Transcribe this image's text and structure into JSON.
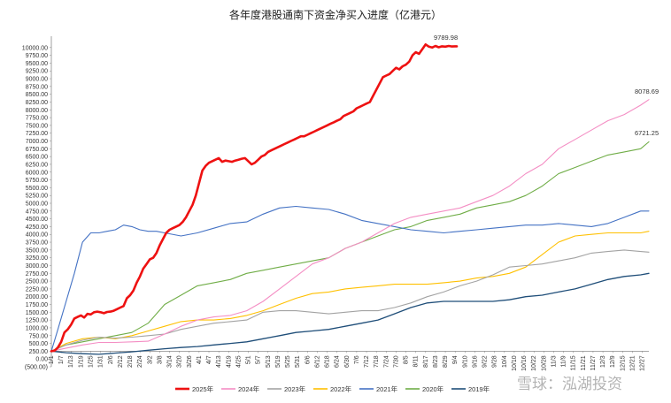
{
  "chart_data": {
    "type": "line",
    "title": "各年度港股通南下资金净买入进度（亿港元）",
    "xlabel": "",
    "ylabel": "",
    "ylim": [
      -500,
      10000
    ],
    "y_ticks": [
      "(500.00)",
      "0.00",
      "250.00",
      "500.00",
      "750.00",
      "1000.00",
      "1250.00",
      "1500.00",
      "1750.00",
      "2000.00",
      "2250.00",
      "2500.00",
      "2750.00",
      "3000.00",
      "3250.00",
      "3500.00",
      "3750.00",
      "4000.00",
      "4250.00",
      "4500.00",
      "4750.00",
      "5000.00",
      "5250.00",
      "5500.00",
      "5750.00",
      "6000.00",
      "6250.00",
      "6500.00",
      "6750.00",
      "7000.00",
      "7250.00",
      "7500.00",
      "7750.00",
      "8000.00",
      "8250.00",
      "8500.00",
      "8750.00",
      "9000.00",
      "9250.00",
      "9500.00",
      "9750.00",
      "10000.00"
    ],
    "x_ticks": [
      "1/1",
      "1/7",
      "1/13",
      "1/19",
      "1/25",
      "1/31",
      "2/6",
      "2/12",
      "2/18",
      "2/24",
      "3/2",
      "3/8",
      "3/14",
      "3/20",
      "3/26",
      "4/1",
      "4/7",
      "4/13",
      "4/19",
      "4/25",
      "5/1",
      "5/7",
      "5/13",
      "5/19",
      "5/25",
      "5/31",
      "6/6",
      "6/12",
      "6/18",
      "6/24",
      "6/30",
      "7/6",
      "7/12",
      "7/18",
      "7/24",
      "7/30",
      "8/5",
      "8/11",
      "8/17",
      "8/23",
      "8/29",
      "9/4",
      "9/10",
      "9/16",
      "9/22",
      "9/28",
      "10/4",
      "10/10",
      "10/16",
      "10/22",
      "10/28",
      "11/3",
      "11/9",
      "11/15",
      "11/21",
      "11/27",
      "12/3",
      "12/9",
      "12/15",
      "12/21",
      "12/27"
    ],
    "x_unit": "day-of-year",
    "legend_position": "bottom",
    "grid": false,
    "series": [
      {
        "name": "2025年",
        "color": "#ee1111",
        "width": 2.6,
        "x": [
          1,
          3,
          5,
          7,
          9,
          11,
          13,
          15,
          17,
          19,
          21,
          23,
          25,
          27,
          29,
          31,
          33,
          35,
          37,
          39,
          41,
          43,
          45,
          47,
          49,
          51,
          53,
          55,
          57,
          59,
          61,
          63,
          65,
          67,
          69,
          71,
          73,
          75,
          77,
          79,
          81,
          83,
          85,
          87,
          89,
          91,
          93,
          95,
          97,
          99,
          101,
          103,
          105,
          107,
          109,
          111,
          113,
          115,
          117,
          119,
          121,
          123,
          125,
          127,
          129,
          131,
          133,
          135,
          137,
          139,
          141,
          143,
          145,
          147,
          149,
          151,
          153,
          155,
          157,
          159,
          161,
          163,
          165,
          167,
          169,
          171,
          173,
          175,
          177,
          179,
          181,
          183,
          185,
          187,
          189,
          191,
          193,
          195,
          197,
          199,
          201,
          203,
          205,
          207,
          209,
          211,
          213,
          215,
          217,
          219,
          221,
          223,
          225,
          227,
          229,
          231,
          233,
          235,
          237,
          239,
          241,
          243,
          245,
          247,
          248
        ],
        "values": [
          0,
          20,
          120,
          300,
          600,
          700,
          850,
          1050,
          1100,
          1150,
          1080,
          1200,
          1180,
          1250,
          1270,
          1250,
          1220,
          1260,
          1270,
          1300,
          1350,
          1400,
          1450,
          1700,
          1800,
          1950,
          2200,
          2400,
          2650,
          2800,
          2950,
          3000,
          3150,
          3400,
          3600,
          3800,
          3900,
          3950,
          4000,
          4050,
          4150,
          4300,
          4500,
          4700,
          5000,
          5400,
          5800,
          5950,
          6050,
          6100,
          6150,
          6200,
          6080,
          6120,
          6100,
          6080,
          6120,
          6150,
          6180,
          6200,
          6100,
          6000,
          6050,
          6150,
          6250,
          6300,
          6400,
          6450,
          6500,
          6550,
          6600,
          6650,
          6700,
          6750,
          6800,
          6850,
          6900,
          6900,
          6950,
          7000,
          7050,
          7100,
          7150,
          7200,
          7250,
          7300,
          7350,
          7400,
          7450,
          7550,
          7600,
          7650,
          7700,
          7800,
          7850,
          7900,
          7950,
          8000,
          8200,
          8400,
          8600,
          8800,
          8850,
          8900,
          9000,
          9100,
          9050,
          9150,
          9200,
          9300,
          9500,
          9600,
          9550,
          9700,
          9850,
          9780,
          9750,
          9800,
          9760,
          9790,
          9780,
          9800,
          9785,
          9789.98,
          9789.98
        ]
      },
      {
        "name": "2024年",
        "color": "#f48ec4",
        "width": 1.1,
        "x": [
          1,
          10,
          20,
          30,
          40,
          50,
          60,
          70,
          80,
          90,
          100,
          110,
          120,
          130,
          140,
          150,
          160,
          170,
          180,
          190,
          200,
          210,
          220,
          230,
          240,
          250,
          260,
          270,
          280,
          290,
          300,
          310,
          320,
          330,
          340,
          350,
          360,
          365
        ],
        "values": [
          0,
          100,
          200,
          280,
          280,
          300,
          320,
          550,
          800,
          1000,
          1100,
          1150,
          1300,
          1600,
          2000,
          2400,
          2800,
          3000,
          3300,
          3500,
          3800,
          4100,
          4300,
          4400,
          4500,
          4600,
          4800,
          5000,
          5300,
          5700,
          6000,
          6500,
          6800,
          7100,
          7400,
          7600,
          7900,
          8078.69
        ]
      },
      {
        "name": "2023年",
        "color": "#a3a3a3",
        "width": 1.1,
        "x": [
          1,
          10,
          20,
          30,
          40,
          50,
          60,
          70,
          80,
          90,
          100,
          110,
          120,
          130,
          140,
          150,
          160,
          170,
          180,
          190,
          200,
          210,
          220,
          230,
          240,
          250,
          260,
          270,
          280,
          290,
          300,
          310,
          320,
          330,
          340,
          350,
          360,
          365
        ],
        "values": [
          0,
          200,
          350,
          450,
          420,
          450,
          500,
          550,
          700,
          800,
          900,
          950,
          1000,
          1250,
          1300,
          1300,
          1250,
          1200,
          1250,
          1300,
          1300,
          1400,
          1550,
          1750,
          1900,
          2100,
          2250,
          2450,
          2700,
          2750,
          2800,
          2900,
          3000,
          3150,
          3200,
          3250,
          3200,
          3180
        ]
      },
      {
        "name": "2022年",
        "color": "#ffc000",
        "width": 1.1,
        "x": [
          1,
          10,
          20,
          30,
          40,
          50,
          60,
          70,
          80,
          90,
          100,
          110,
          120,
          130,
          140,
          150,
          160,
          170,
          180,
          190,
          200,
          210,
          220,
          230,
          240,
          250,
          260,
          270,
          280,
          290,
          300,
          310,
          320,
          330,
          340,
          350,
          360,
          365
        ],
        "values": [
          0,
          250,
          400,
          450,
          400,
          500,
          650,
          800,
          950,
          1000,
          1000,
          1050,
          1150,
          1300,
          1500,
          1700,
          1850,
          1900,
          2000,
          2050,
          2100,
          2150,
          2150,
          2150,
          2200,
          2250,
          2350,
          2400,
          2500,
          2700,
          3100,
          3500,
          3700,
          3750,
          3800,
          3800,
          3800,
          3850
        ]
      },
      {
        "name": "2021年",
        "color": "#4472c4",
        "width": 1.1,
        "x": [
          1,
          5,
          10,
          15,
          20,
          25,
          30,
          35,
          40,
          45,
          50,
          55,
          60,
          65,
          70,
          80,
          90,
          100,
          110,
          120,
          130,
          140,
          150,
          160,
          170,
          180,
          190,
          200,
          210,
          220,
          230,
          240,
          250,
          260,
          270,
          280,
          290,
          300,
          310,
          320,
          330,
          340,
          350,
          360,
          365
        ],
        "values": [
          0,
          700,
          1600,
          2500,
          3500,
          3800,
          3800,
          3850,
          3900,
          4050,
          4000,
          3900,
          3850,
          3850,
          3800,
          3700,
          3800,
          3950,
          4100,
          4150,
          4400,
          4600,
          4650,
          4600,
          4550,
          4400,
          4200,
          4100,
          4000,
          3900,
          3850,
          3800,
          3850,
          3900,
          3950,
          4000,
          4050,
          4050,
          4100,
          4050,
          4000,
          4100,
          4300,
          4500,
          4500
        ]
      },
      {
        "name": "2020年",
        "color": "#70ad47",
        "width": 1.1,
        "x": [
          1,
          10,
          20,
          30,
          40,
          50,
          60,
          70,
          80,
          90,
          100,
          110,
          120,
          130,
          140,
          150,
          160,
          170,
          180,
          190,
          200,
          210,
          220,
          230,
          240,
          250,
          260,
          270,
          280,
          290,
          300,
          310,
          320,
          330,
          340,
          350,
          360,
          365
        ],
        "values": [
          0,
          200,
          300,
          400,
          500,
          600,
          900,
          1500,
          1800,
          2100,
          2200,
          2300,
          2500,
          2600,
          2700,
          2800,
          2900,
          3000,
          3300,
          3500,
          3700,
          3900,
          4000,
          4200,
          4300,
          4400,
          4600,
          4700,
          4800,
          5000,
          5300,
          5700,
          5900,
          6100,
          6300,
          6400,
          6500,
          6721.25
        ]
      },
      {
        "name": "2019年",
        "color": "#1f4e79",
        "width": 1.3,
        "x": [
          1,
          10,
          20,
          30,
          40,
          50,
          60,
          70,
          80,
          90,
          100,
          110,
          120,
          130,
          140,
          150,
          160,
          170,
          180,
          190,
          200,
          210,
          220,
          230,
          240,
          250,
          260,
          270,
          280,
          290,
          300,
          310,
          320,
          330,
          340,
          350,
          360,
          365
        ],
        "values": [
          0,
          -50,
          -80,
          -100,
          -60,
          -20,
          30,
          80,
          120,
          150,
          200,
          250,
          300,
          400,
          500,
          600,
          650,
          700,
          800,
          900,
          1000,
          1200,
          1400,
          1550,
          1600,
          1600,
          1600,
          1600,
          1650,
          1750,
          1800,
          1900,
          2000,
          2150,
          2300,
          2400,
          2450,
          2500
        ]
      }
    ],
    "annotations": [
      "9789.98",
      "8078.69",
      "6721.25"
    ]
  },
  "watermark": "雪球：泓湖投资"
}
